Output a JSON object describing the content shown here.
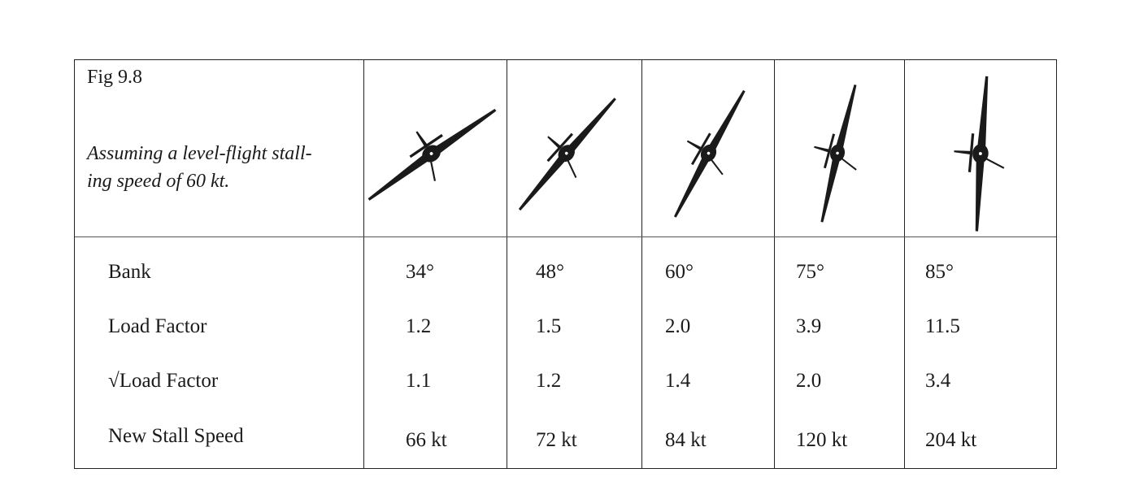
{
  "figure": {
    "title": "Fig 9.8",
    "caption": "Assuming a level-flight stall-ing speed of 60 kt.",
    "caption_lines": [
      "Assuming a level-flight stall-",
      "ing speed of 60 kt."
    ]
  },
  "rows": [
    {
      "label": "Bank",
      "values": [
        "34°",
        "48°",
        "60°",
        "75°",
        "85°"
      ]
    },
    {
      "label": "Load Factor",
      "values": [
        "1.2",
        "1.5",
        "2.0",
        "3.9",
        "11.5"
      ]
    },
    {
      "label": "√Load Factor",
      "values": [
        "1.1",
        "1.2",
        "1.4",
        "2.0",
        "3.4"
      ]
    },
    {
      "label": "New Stall Speed",
      "values": [
        "66 kt",
        "72 kt",
        "84 kt",
        "120 kt",
        "204 kt"
      ]
    }
  ],
  "bank_angles_deg": [
    34,
    48,
    60,
    75,
    85
  ],
  "aircraft_icon": "banked-aircraft-silhouette-icon",
  "colors": {
    "ink": "#1a1a1a",
    "border": "#222222",
    "heading": "#c9a04a"
  }
}
